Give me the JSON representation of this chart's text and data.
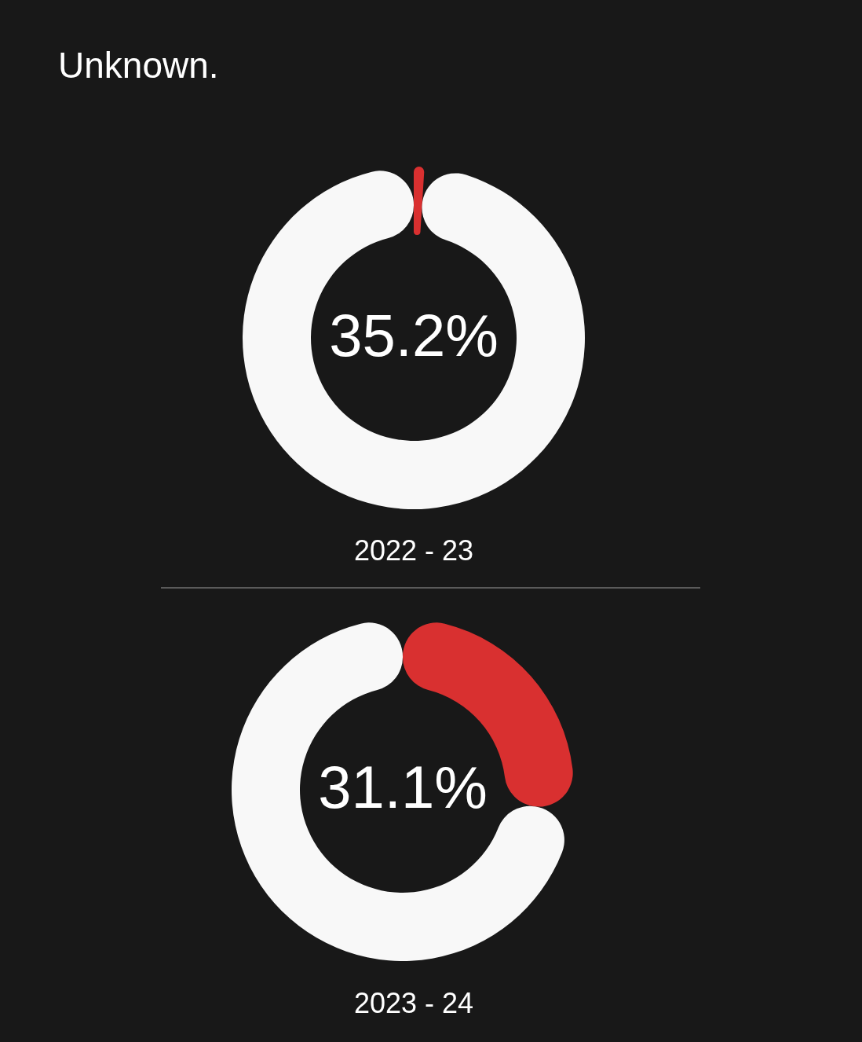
{
  "chart_data": [
    {
      "type": "donut",
      "title": "Unknown.",
      "categories": [
        null,
        null
      ],
      "values": [
        1,
        99
      ],
      "colors": [
        "#d93030",
        "#f8f8f8"
      ],
      "annotations": [
        "35.2%"
      ],
      "xlabel": "2022 - 23"
    },
    {
      "type": "donut",
      "categories": [
        null,
        null
      ],
      "values": [
        27,
        73
      ],
      "colors": [
        "#d93030",
        "#f8f8f8"
      ],
      "annotations": [
        "31.1%"
      ],
      "xlabel": "2023 - 24"
    }
  ]
}
